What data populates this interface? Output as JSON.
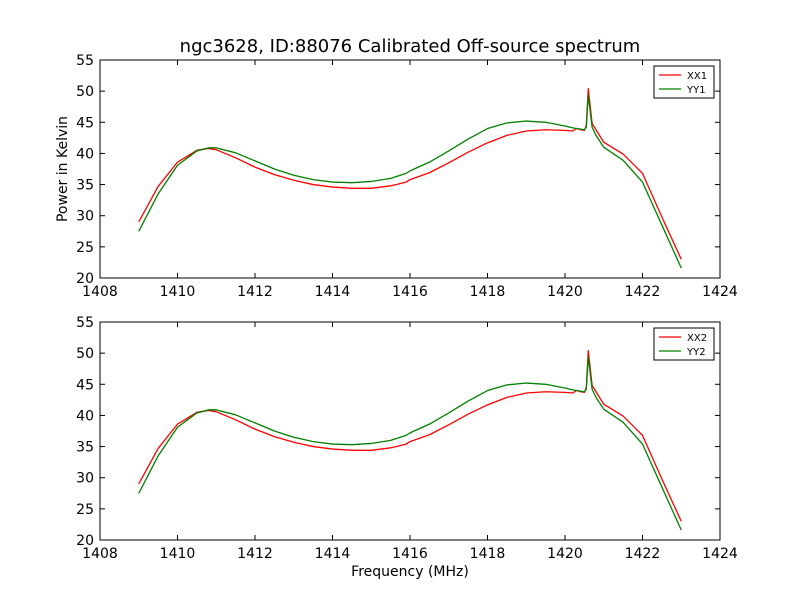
{
  "chart_data": [
    {
      "type": "line",
      "title": "ngc3628, ID:88076 Calibrated Off-source spectrum",
      "xlabel": "",
      "ylabel": "Power in Kelvin",
      "xlim": [
        1408,
        1424
      ],
      "ylim": [
        20,
        55
      ],
      "x_ticks": [
        1408,
        1410,
        1412,
        1414,
        1416,
        1418,
        1420,
        1422,
        1424
      ],
      "y_ticks": [
        20,
        25,
        30,
        35,
        40,
        45,
        50,
        55
      ],
      "grid": false,
      "legend_position": "top-right",
      "series": [
        {
          "name": "XX1",
          "color": "#ff0000",
          "x": [
            1409.0,
            1409.5,
            1410.0,
            1410.5,
            1410.8,
            1411.0,
            1411.5,
            1412.0,
            1412.5,
            1413.0,
            1413.5,
            1414.0,
            1414.5,
            1415.0,
            1415.5,
            1415.9,
            1416.0,
            1416.5,
            1417.0,
            1417.5,
            1418.0,
            1418.5,
            1419.0,
            1419.5,
            1420.0,
            1420.2,
            1420.3,
            1420.4,
            1420.5,
            1420.55,
            1420.6,
            1420.7,
            1420.8,
            1421.0,
            1421.5,
            1422.0,
            1422.5,
            1423.0
          ],
          "y": [
            29.0,
            34.7,
            38.6,
            40.5,
            40.8,
            40.6,
            39.3,
            37.8,
            36.6,
            35.7,
            35.0,
            34.6,
            34.4,
            34.4,
            34.8,
            35.4,
            35.8,
            36.9,
            38.5,
            40.2,
            41.7,
            42.9,
            43.6,
            43.8,
            43.7,
            43.6,
            44.0,
            43.8,
            43.7,
            44.5,
            50.4,
            44.8,
            43.8,
            41.8,
            39.9,
            36.8,
            29.8,
            23.0
          ]
        },
        {
          "name": "YY1",
          "color": "#008000",
          "x": [
            1409.0,
            1409.5,
            1410.0,
            1410.5,
            1410.8,
            1411.0,
            1411.5,
            1412.0,
            1412.5,
            1413.0,
            1413.5,
            1414.0,
            1414.5,
            1415.0,
            1415.5,
            1415.9,
            1416.0,
            1416.5,
            1417.0,
            1417.5,
            1418.0,
            1418.5,
            1419.0,
            1419.5,
            1420.0,
            1420.2,
            1420.3,
            1420.4,
            1420.5,
            1420.55,
            1420.6,
            1420.7,
            1420.8,
            1421.0,
            1421.5,
            1422.0,
            1422.5,
            1423.0
          ],
          "y": [
            27.5,
            33.5,
            38.1,
            40.4,
            40.9,
            40.9,
            40.1,
            38.8,
            37.5,
            36.5,
            35.8,
            35.4,
            35.3,
            35.5,
            36.0,
            36.8,
            37.2,
            38.6,
            40.4,
            42.3,
            44.0,
            44.9,
            45.2,
            45.0,
            44.4,
            44.1,
            44.0,
            43.9,
            43.8,
            44.2,
            49.4,
            44.2,
            42.9,
            41.0,
            38.9,
            35.4,
            28.5,
            21.6
          ]
        }
      ]
    },
    {
      "type": "line",
      "title": "",
      "xlabel": "Frequency (MHz)",
      "ylabel": "",
      "xlim": [
        1408,
        1424
      ],
      "ylim": [
        20,
        55
      ],
      "x_ticks": [
        1408,
        1410,
        1412,
        1414,
        1416,
        1418,
        1420,
        1422,
        1424
      ],
      "y_ticks": [
        20,
        25,
        30,
        35,
        40,
        45,
        50,
        55
      ],
      "grid": false,
      "legend_position": "top-right",
      "series": [
        {
          "name": "XX2",
          "color": "#ff0000",
          "x": [
            1409.0,
            1409.5,
            1410.0,
            1410.5,
            1410.8,
            1411.0,
            1411.5,
            1412.0,
            1412.5,
            1413.0,
            1413.5,
            1414.0,
            1414.5,
            1415.0,
            1415.5,
            1415.9,
            1416.0,
            1416.5,
            1417.0,
            1417.5,
            1418.0,
            1418.5,
            1419.0,
            1419.5,
            1420.0,
            1420.2,
            1420.3,
            1420.4,
            1420.5,
            1420.55,
            1420.6,
            1420.7,
            1420.8,
            1421.0,
            1421.5,
            1422.0,
            1422.5,
            1423.0
          ],
          "y": [
            29.0,
            34.7,
            38.6,
            40.5,
            40.8,
            40.6,
            39.3,
            37.8,
            36.6,
            35.7,
            35.0,
            34.6,
            34.4,
            34.4,
            34.8,
            35.4,
            35.8,
            36.9,
            38.5,
            40.2,
            41.7,
            42.9,
            43.6,
            43.8,
            43.7,
            43.6,
            44.0,
            43.8,
            43.7,
            44.5,
            50.4,
            44.8,
            43.8,
            41.8,
            39.9,
            36.8,
            29.8,
            23.0
          ]
        },
        {
          "name": "YY2",
          "color": "#008000",
          "x": [
            1409.0,
            1409.5,
            1410.0,
            1410.5,
            1410.8,
            1411.0,
            1411.5,
            1412.0,
            1412.5,
            1413.0,
            1413.5,
            1414.0,
            1414.5,
            1415.0,
            1415.5,
            1415.9,
            1416.0,
            1416.5,
            1417.0,
            1417.5,
            1418.0,
            1418.5,
            1419.0,
            1419.5,
            1420.0,
            1420.2,
            1420.3,
            1420.4,
            1420.5,
            1420.55,
            1420.6,
            1420.7,
            1420.8,
            1421.0,
            1421.5,
            1422.0,
            1422.5,
            1423.0
          ],
          "y": [
            27.5,
            33.5,
            38.1,
            40.4,
            40.9,
            40.9,
            40.1,
            38.8,
            37.5,
            36.5,
            35.8,
            35.4,
            35.3,
            35.5,
            36.0,
            36.8,
            37.2,
            38.6,
            40.4,
            42.3,
            44.0,
            44.9,
            45.2,
            45.0,
            44.4,
            44.1,
            44.0,
            43.9,
            43.8,
            44.2,
            49.4,
            44.2,
            42.9,
            41.0,
            38.9,
            35.4,
            28.5,
            21.6
          ]
        }
      ]
    }
  ]
}
